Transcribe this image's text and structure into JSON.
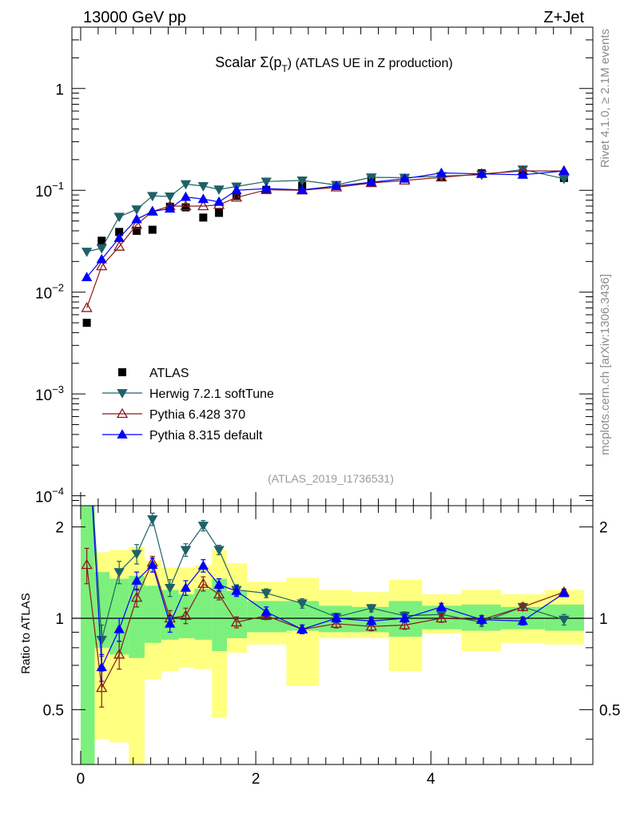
{
  "header": {
    "left": "13000 GeV pp",
    "right": "Z+Jet"
  },
  "side_labels": {
    "rivet": "Rivet 4.1.0, ≥ 2.1M events",
    "mcplots": "mcplots.cern.ch [arXiv:1306.3436]"
  },
  "chart_data": {
    "type": "scatter",
    "title": "Scalar Σ(pT) (ATLAS UE in Z production)",
    "title_parts": {
      "prefix": "Scalar Σ(p",
      "sub": "T",
      "suffix": ") (ATLAS UE in Z production)"
    },
    "analysis_tag": "(ATLAS_2019_I1736531)",
    "xlabel": "",
    "ylabel_main": "",
    "ylabel_ratio": "Ratio to ATLAS",
    "xlim": [
      -0.1,
      5.85
    ],
    "ylim_main": [
      8e-05,
      4
    ],
    "ylim_ratio": [
      0.33,
      2.35
    ],
    "yscale_main": "log",
    "yscale_ratio": "log",
    "x_ticks": [
      {
        "v": 0,
        "label": "0"
      },
      {
        "v": 2,
        "label": "2"
      },
      {
        "v": 4,
        "label": "4"
      }
    ],
    "y_ticks_main": [
      {
        "v": 0.0001,
        "base": "10",
        "exp": "−4"
      },
      {
        "v": 0.001,
        "base": "10",
        "exp": "−3"
      },
      {
        "v": 0.01,
        "base": "10",
        "exp": "−2"
      },
      {
        "v": 0.1,
        "base": "10",
        "exp": "−1"
      },
      {
        "v": 1,
        "base": "1",
        "exp": ""
      }
    ],
    "y_ticks_ratio": [
      {
        "v": 0.5,
        "label": "0.5"
      },
      {
        "v": 1,
        "label": "1"
      },
      {
        "v": 2,
        "label": "2"
      }
    ],
    "legend_position": "left, below middle",
    "x": [
      0.07,
      0.24,
      0.44,
      0.64,
      0.82,
      1.02,
      1.2,
      1.4,
      1.58,
      1.78,
      2.12,
      2.53,
      2.92,
      3.32,
      3.7,
      4.12,
      4.58,
      5.05,
      5.52
    ],
    "series": [
      {
        "name": "ATLAS",
        "color": "#000000",
        "marker": "square",
        "values": [
          0.005,
          0.032,
          0.039,
          0.04,
          0.041,
          0.069,
          0.068,
          0.054,
          0.06,
          0.088,
          0.101,
          0.111,
          0.112,
          0.127,
          0.131,
          0.135,
          0.147,
          0.147,
          0.132
        ]
      },
      {
        "name": "Herwig 7.2.1 softTune",
        "color": "#1f6168",
        "marker": "triangle-down",
        "values": [
          0.025,
          0.027,
          0.055,
          0.065,
          0.088,
          0.087,
          0.115,
          0.11,
          0.102,
          0.109,
          0.122,
          0.125,
          0.113,
          0.134,
          0.133,
          0.138,
          0.142,
          0.16,
          0.13
        ],
        "ratio": [
          5.0,
          0.85,
          1.42,
          1.63,
          2.12,
          1.26,
          1.68,
          2.02,
          1.68,
          1.24,
          1.21,
          1.12,
          1.01,
          1.08,
          1.02,
          1.03,
          0.97,
          1.09,
          0.99
        ],
        "ratio_err": [
          0.5,
          0.1,
          0.12,
          0.12,
          0.1,
          0.08,
          0.08,
          0.08,
          0.06,
          0.05,
          0.04,
          0.04,
          0.03,
          0.03,
          0.03,
          0.03,
          0.03,
          0.03,
          0.04
        ]
      },
      {
        "name": "Pythia 6.428 370",
        "color": "#8b1a1a",
        "marker": "triangle-up-open",
        "values": [
          0.007,
          0.018,
          0.028,
          0.046,
          0.062,
          0.07,
          0.07,
          0.07,
          0.072,
          0.085,
          0.101,
          0.1,
          0.107,
          0.118,
          0.125,
          0.134,
          0.145,
          0.155,
          0.155
        ],
        "ratio": [
          1.5,
          0.59,
          0.76,
          1.17,
          1.53,
          1.0,
          1.02,
          1.3,
          1.2,
          0.97,
          1.02,
          0.92,
          0.96,
          0.94,
          0.95,
          1.0,
          0.99,
          1.09,
          1.22
        ],
        "ratio_err": [
          0.2,
          0.08,
          0.08,
          0.08,
          0.07,
          0.06,
          0.06,
          0.07,
          0.05,
          0.04,
          0.03,
          0.03,
          0.03,
          0.03,
          0.03,
          0.03,
          0.03,
          0.03,
          0.03
        ]
      },
      {
        "name": "Pythia 8.315 default",
        "color": "#0000ff",
        "marker": "triangle-up",
        "values": [
          0.014,
          0.021,
          0.034,
          0.052,
          0.062,
          0.066,
          0.086,
          0.082,
          0.077,
          0.1,
          0.104,
          0.101,
          0.11,
          0.12,
          0.13,
          0.148,
          0.145,
          0.142,
          0.155
        ],
        "ratio": [
          5.0,
          0.69,
          0.92,
          1.33,
          1.5,
          0.96,
          1.26,
          1.49,
          1.29,
          1.23,
          1.05,
          0.92,
          1.0,
          0.98,
          1.0,
          1.09,
          0.99,
          0.98,
          1.21
        ],
        "ratio_err": [
          0.5,
          0.07,
          0.08,
          0.09,
          0.08,
          0.06,
          0.07,
          0.07,
          0.06,
          0.05,
          0.04,
          0.03,
          0.03,
          0.03,
          0.03,
          0.03,
          0.03,
          0.03,
          0.03
        ]
      }
    ],
    "bands": {
      "green": {
        "color": "#7cf07c",
        "edges": [
          0.0,
          0.16,
          0.33,
          0.55,
          0.73,
          0.92,
          1.12,
          1.3,
          1.5,
          1.67,
          1.9,
          2.35,
          2.72,
          3.1,
          3.52,
          3.9,
          4.35,
          4.8,
          5.3,
          5.75
        ],
        "lo": [
          0.33,
          0.8,
          0.76,
          0.74,
          0.83,
          0.85,
          0.86,
          0.85,
          0.78,
          0.86,
          0.9,
          0.91,
          0.9,
          0.9,
          0.87,
          0.92,
          0.91,
          0.92,
          0.91
        ],
        "hi": [
          2.35,
          1.42,
          1.35,
          1.38,
          1.28,
          1.24,
          1.2,
          1.25,
          1.35,
          1.23,
          1.14,
          1.14,
          1.1,
          1.09,
          1.14,
          1.1,
          1.11,
          1.09,
          1.11
        ]
      },
      "yellow": {
        "color": "#ffff80",
        "edges": [
          0.0,
          0.16,
          0.33,
          0.55,
          0.73,
          0.92,
          1.12,
          1.3,
          1.5,
          1.67,
          1.9,
          2.35,
          2.72,
          3.1,
          3.52,
          3.9,
          4.35,
          4.8,
          5.3,
          5.75
        ],
        "lo": [
          0.33,
          0.4,
          0.39,
          0.33,
          0.63,
          0.67,
          0.69,
          0.68,
          0.47,
          0.77,
          0.82,
          0.6,
          0.86,
          0.86,
          0.67,
          0.89,
          0.78,
          0.83,
          0.82
        ],
        "hi": [
          2.35,
          1.65,
          1.68,
          1.72,
          1.55,
          1.47,
          1.47,
          1.5,
          1.68,
          1.52,
          1.32,
          1.36,
          1.24,
          1.22,
          1.34,
          1.2,
          1.24,
          1.2,
          1.24
        ]
      }
    }
  }
}
